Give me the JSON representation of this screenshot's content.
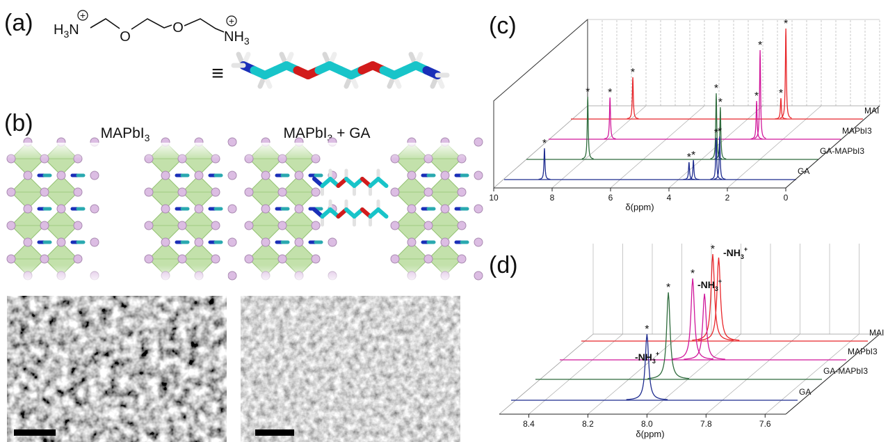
{
  "a": {
    "label": "(a)",
    "h": "H",
    "three": "3",
    "n": "N",
    "plus": "+",
    "o": "O",
    "nh": "NH",
    "equiv": "≡"
  },
  "b": {
    "label": "(b)",
    "left_title": {
      "base": "MAPbI",
      "sub": "3"
    },
    "right_title": {
      "base": "MAPbI",
      "sub": "3",
      "tail": " + GA"
    }
  },
  "c": {
    "label": "(c)",
    "xlabel": "δ(ppm)",
    "xlim": [
      10,
      0
    ],
    "xticks": [
      10,
      8,
      6,
      4,
      2,
      0
    ],
    "star": "*",
    "series": [
      {
        "name": "GA",
        "color": "#1c2a8e",
        "peaks": [
          {
            "ppm": 8.62,
            "h": 45
          },
          {
            "ppm": 3.67,
            "h": 25
          },
          {
            "ppm": 3.52,
            "h": 28
          },
          {
            "ppm": 2.74,
            "h": 60
          },
          {
            "ppm": 2.62,
            "h": 62
          }
        ]
      },
      {
        "name": "GA-MAPbI3",
        "color": "#2e6b3c",
        "peaks": [
          {
            "ppm": 7.9,
            "h": 90
          },
          {
            "ppm": 3.5,
            "h": 95
          },
          {
            "ppm": 3.36,
            "h": 75
          }
        ]
      },
      {
        "name": "MAPbI3",
        "color": "#d0169a",
        "peaks": [
          {
            "ppm": 7.9,
            "h": 60
          },
          {
            "ppm": 2.88,
            "h": 55
          },
          {
            "ppm": 2.76,
            "h": 128
          }
        ]
      },
      {
        "name": "MAI",
        "color": "#e8262a",
        "peaks": [
          {
            "ppm": 7.88,
            "h": 60
          },
          {
            "ppm": 2.81,
            "h": 30
          },
          {
            "ppm": 2.64,
            "h": 130
          }
        ]
      }
    ]
  },
  "d": {
    "label": "(d)",
    "xlabel": "δ(ppm)",
    "xlim": [
      8.5,
      7.53
    ],
    "xticks": [
      8.4,
      8.2,
      {
        "value": 8,
        "label": "8.0"
      },
      7.8,
      7.6
    ],
    "star": "*",
    "nh3": {
      "base": "-NH",
      "sub": "3",
      "sup": "+"
    },
    "series": [
      {
        "name": "GA",
        "color": "#1c2a8e",
        "peaks": [
          {
            "ppm": 8.04,
            "h": 95
          }
        ]
      },
      {
        "name": "GA-MAPbI3",
        "color": "#2e6b3c",
        "peaks": [
          {
            "ppm": 8.05,
            "h": 125
          }
        ]
      },
      {
        "name": "MAPbI3",
        "color": "#d0169a",
        "peaks": [
          {
            "ppm": 8.05,
            "h": 117
          },
          {
            "ppm": 8.01,
            "h": 95
          }
        ]
      },
      {
        "name": "MAI",
        "color": "#e8262a",
        "peaks": [
          {
            "ppm": 8.055,
            "h": 125
          },
          {
            "ppm": 8.035,
            "h": 120
          }
        ]
      }
    ]
  }
}
